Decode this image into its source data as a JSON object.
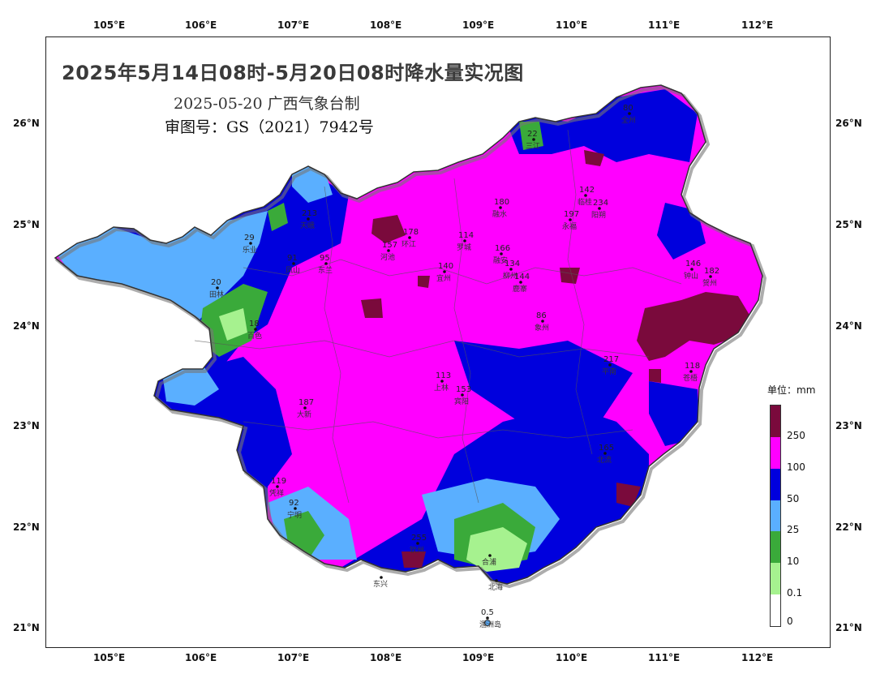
{
  "title": "2025年5月14日08时-5月20日08时降水量实况图",
  "subtitle": "2025-05-20 广西气象台制",
  "approval": "审图号：GS（2021）7942号",
  "axes": {
    "lon_labels": [
      "105°E",
      "106°E",
      "107°E",
      "108°E",
      "109°E",
      "110°E",
      "111°E",
      "112°E"
    ],
    "lat_labels": [
      "26°N",
      "25°N",
      "24°N",
      "23°N",
      "22°N",
      "21°N"
    ]
  },
  "legend": {
    "unit": "单位：mm",
    "levels": [
      {
        "label": "250",
        "color": "#7a0a3c"
      },
      {
        "label": "100",
        "color": "#ff00ff"
      },
      {
        "label": "50",
        "color": "#0000dd"
      },
      {
        "label": "25",
        "color": "#5aafff"
      },
      {
        "label": "10",
        "color": "#3aaa3a"
      },
      {
        "label": "0.1",
        "color": "#a6f28f"
      },
      {
        "label": "0",
        "color": "#ffffff"
      }
    ]
  },
  "stations": [
    {
      "value": "213",
      "name": "天峨"
    },
    {
      "value": "29",
      "name": "乐业"
    },
    {
      "value": "20",
      "name": "田林"
    },
    {
      "value": "91",
      "name": "凤山"
    },
    {
      "value": "95",
      "name": "东兰"
    },
    {
      "value": "178",
      "name": "环江"
    },
    {
      "value": "157",
      "name": "河池"
    },
    {
      "value": "114",
      "name": "罗城"
    },
    {
      "value": "166",
      "name": "融安"
    },
    {
      "value": "180",
      "name": "融水"
    },
    {
      "value": "197",
      "name": "永福"
    },
    {
      "value": "142",
      "name": "临桂"
    },
    {
      "value": "234",
      "name": "阳朔"
    },
    {
      "value": "140",
      "name": "宜州"
    },
    {
      "value": "134",
      "name": "柳州"
    },
    {
      "value": "144",
      "name": "鹿寨"
    },
    {
      "value": "86",
      "name": "象州"
    },
    {
      "value": "18",
      "name": "百色"
    },
    {
      "value": "113",
      "name": "上林"
    },
    {
      "value": "153",
      "name": "宾阳"
    },
    {
      "value": "217",
      "name": "平南"
    },
    {
      "value": "118",
      "name": "苍梧"
    },
    {
      "value": "187",
      "name": "大新"
    },
    {
      "value": "165",
      "name": "北流"
    },
    {
      "value": "119",
      "name": "凭祥"
    },
    {
      "value": "92",
      "name": "宁明"
    },
    {
      "value": "255",
      "name": "钦州"
    },
    {
      "value": "22",
      "name": "三江"
    },
    {
      "value": "80",
      "name": "全州"
    },
    {
      "value": "146",
      "name": "钟山"
    },
    {
      "value": "182",
      "name": "贺州"
    },
    {
      "value": "0.5",
      "name": "涠洲岛"
    },
    {
      "value": "",
      "name": "合浦"
    },
    {
      "value": "",
      "name": "北海"
    },
    {
      "value": "",
      "name": "东兴"
    }
  ]
}
